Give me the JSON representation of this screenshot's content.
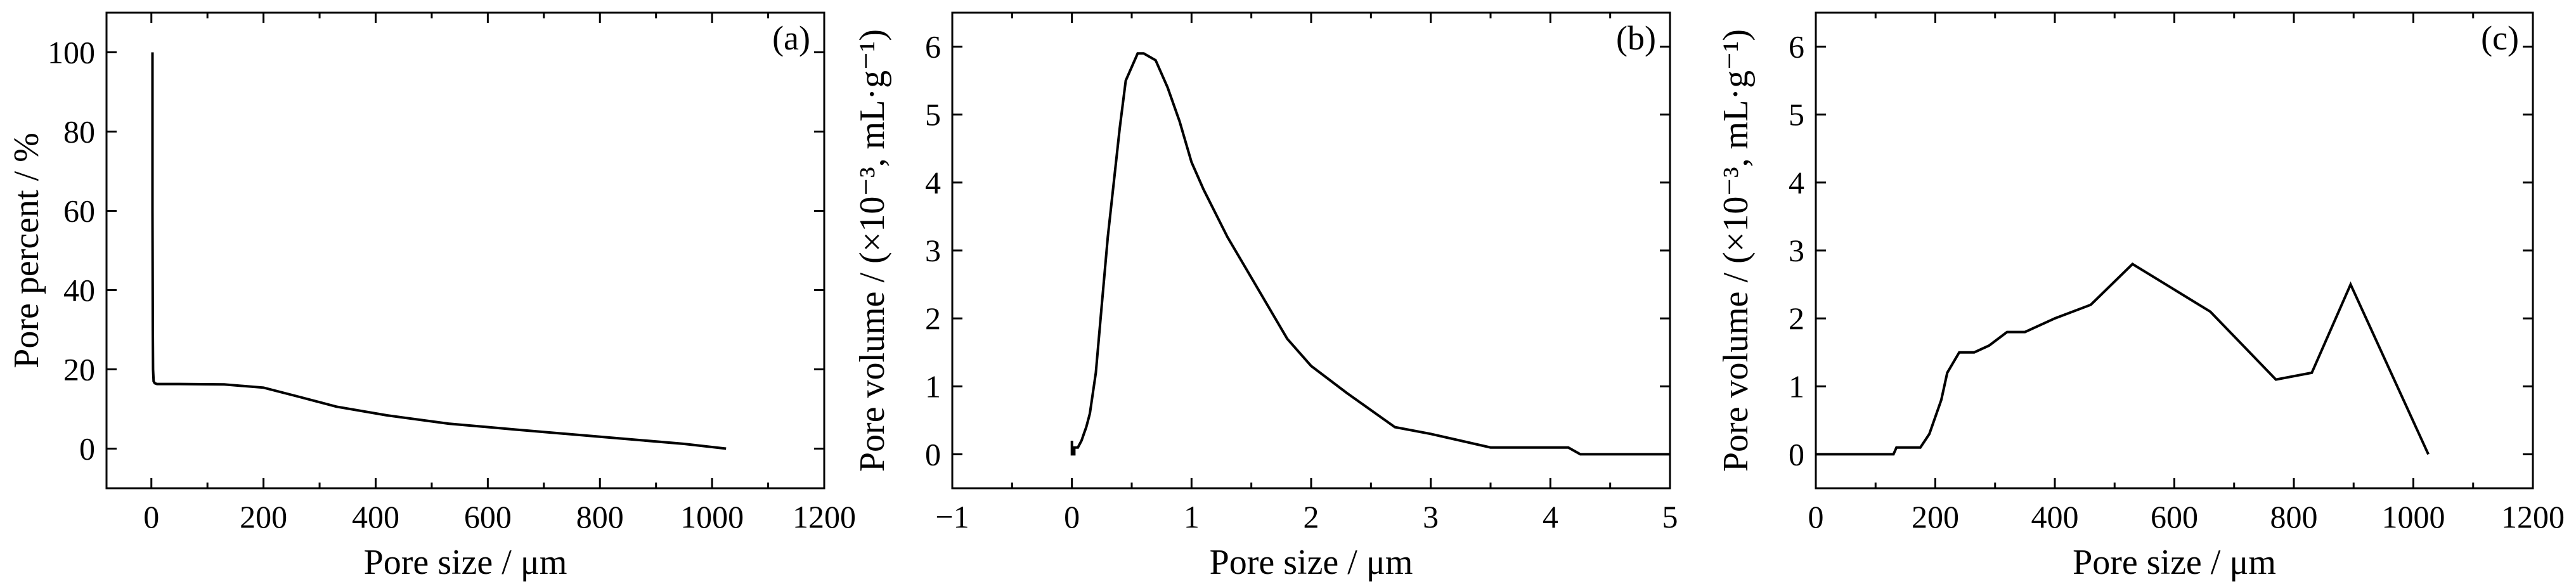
{
  "chart_data": [
    {
      "type": "line",
      "panel_label": "(a)",
      "xlabel": "Pore size / μm",
      "ylabel": "Pore percent / %",
      "xlim": [
        -80,
        1200
      ],
      "ylim": [
        -10,
        110
      ],
      "xticks": [
        0,
        200,
        400,
        600,
        800,
        1000,
        1200
      ],
      "yticks": [
        0,
        20,
        40,
        60,
        80,
        100
      ],
      "grid": false,
      "series": [
        {
          "x": [
            2,
            2,
            2.5,
            3,
            4,
            6,
            10,
            50,
            130,
            200,
            260,
            330,
            420,
            530,
            650,
            800,
            950,
            1025
          ],
          "y": [
            100,
            60,
            30,
            20,
            17,
            16.5,
            16.3,
            16.3,
            16.2,
            15.4,
            13.2,
            10.6,
            8.4,
            6.3,
            4.8,
            3.0,
            1.2,
            0
          ]
        }
      ]
    },
    {
      "type": "line",
      "panel_label": "(b)",
      "xlabel": "Pore size / μm",
      "ylabel": "Pore volume / (×10⁻³, mL·g⁻¹)",
      "xlim": [
        -1,
        5
      ],
      "ylim": [
        -0.5,
        6.5
      ],
      "xticks": [
        -1,
        0,
        1,
        2,
        3,
        4,
        5
      ],
      "yticks": [
        0,
        1,
        2,
        3,
        4,
        5,
        6
      ],
      "grid": false,
      "series": [
        {
          "x": [
            0.0,
            0.0,
            0.02,
            0.02,
            0.05,
            0.08,
            0.1,
            0.12,
            0.15,
            0.2,
            0.25,
            0.3,
            0.35,
            0.4,
            0.45,
            0.5,
            0.55,
            0.6,
            0.7,
            0.8,
            0.9,
            1.0,
            1.1,
            1.3,
            1.5,
            1.8,
            2.0,
            2.3,
            2.7,
            3.0,
            3.5,
            4.0,
            4.15,
            4.25,
            5.0
          ],
          "y": [
            0.2,
            0.0,
            0.0,
            0.1,
            0.1,
            0.2,
            0.3,
            0.4,
            0.6,
            1.2,
            2.2,
            3.2,
            4.0,
            4.8,
            5.5,
            5.7,
            5.9,
            5.9,
            5.8,
            5.4,
            4.9,
            4.3,
            3.9,
            3.2,
            2.6,
            1.7,
            1.3,
            0.9,
            0.4,
            0.3,
            0.1,
            0.1,
            0.1,
            0.0,
            0.0
          ]
        }
      ]
    },
    {
      "type": "line",
      "panel_label": "(c)",
      "xlabel": "Pore size / μm",
      "ylabel": "Pore volume / (×10⁻³, mL·g⁻¹)",
      "xlim": [
        0,
        1200
      ],
      "ylim": [
        -0.5,
        6.5
      ],
      "xticks": [
        0,
        200,
        400,
        600,
        800,
        1000,
        1200
      ],
      "yticks": [
        0,
        1,
        2,
        3,
        4,
        5,
        6
      ],
      "grid": false,
      "series": [
        {
          "x": [
            0,
            130,
            135,
            175,
            190,
            210,
            220,
            240,
            265,
            290,
            320,
            350,
            400,
            460,
            530,
            660,
            770,
            830,
            895,
            1025
          ],
          "y": [
            0,
            0,
            0.1,
            0.1,
            0.3,
            0.8,
            1.2,
            1.5,
            1.5,
            1.6,
            1.8,
            1.8,
            2.0,
            2.2,
            2.8,
            2.1,
            1.1,
            1.2,
            2.5,
            0
          ]
        }
      ]
    }
  ]
}
